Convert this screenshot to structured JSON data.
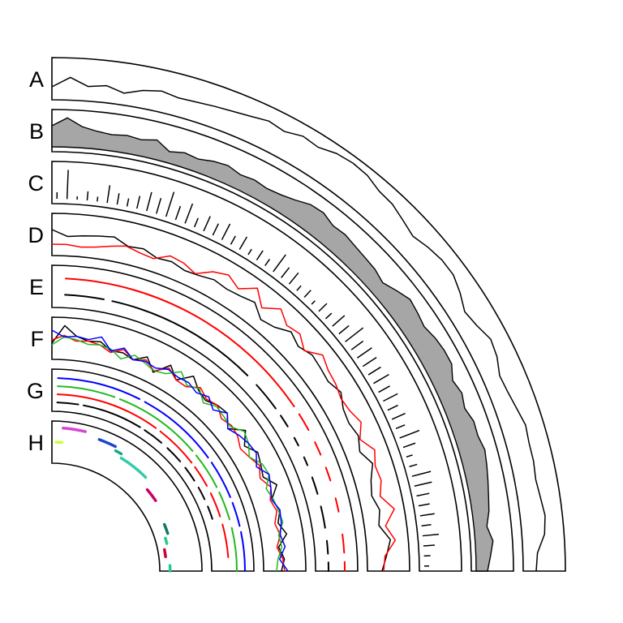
{
  "chart_data": {
    "type": "circular-tracks",
    "colors": {
      "black": "#000000",
      "red": "#ff0000",
      "green": "#22b822",
      "blue": "#0000ff",
      "area_fill": "#a6a6a6"
    },
    "x_range": [
      0,
      1
    ],
    "tracks": [
      {
        "label": "A",
        "kind": "line",
        "ylim": [
          0,
          1
        ],
        "series": [
          {
            "color": "black",
            "y": [
              0.25,
              0.55,
              0.3,
              0.38,
              0.22,
              0.4,
              0.5,
              0.42,
              0.45,
              0.5,
              0.55,
              0.62,
              0.72,
              0.65,
              0.8,
              0.75,
              0.9,
              0.95,
              0.92,
              0.78,
              0.75,
              0.62,
              0.5,
              0.62,
              0.7,
              0.7,
              0.55,
              0.35,
              0.45,
              0.62,
              0.55,
              0.38,
              0.42,
              0.5,
              0.6,
              0.55,
              0.55,
              0.5,
              0.55,
              0.62,
              0.55,
              0.3,
              0.25
            ]
          }
        ]
      },
      {
        "label": "B",
        "kind": "area",
        "ylim": [
          0,
          1
        ],
        "series": [
          {
            "color": "black",
            "fill": "area_fill",
            "y": [
              0.65,
              0.9,
              0.65,
              0.55,
              0.5,
              0.55,
              0.5,
              0.6,
              0.35,
              0.45,
              0.4,
              0.5,
              0.55,
              0.45,
              0.5,
              0.45,
              0.5,
              0.6,
              0.75,
              0.78,
              0.65,
              0.68,
              0.62,
              0.58,
              0.55,
              0.45,
              0.62,
              0.78,
              0.72,
              0.65,
              0.75,
              0.8,
              0.8,
              0.6,
              0.7,
              0.6,
              0.72,
              0.7,
              0.78,
              0.72,
              0.65,
              0.58,
              0.52,
              0.4,
              0.55,
              0.45,
              0.35
            ]
          }
        ]
      },
      {
        "label": "C",
        "kind": "bar",
        "ylim": [
          0,
          1
        ],
        "values": [
          0.2,
          0.9,
          0.1,
          0.28,
          0.15,
          0.55,
          0.35,
          0.25,
          0.4,
          0.6,
          0.5,
          0.8,
          0.45,
          0.65,
          0.3,
          0.5,
          0.4,
          0.55,
          0.3,
          0.45,
          0.2,
          0.35,
          0.25,
          0.65,
          0.4,
          0.45,
          0.2,
          0.3,
          0.15,
          0.35,
          0.25,
          0.5,
          0.4,
          0.7,
          0.45,
          0.55,
          0.5,
          0.45,
          0.55,
          0.4,
          0.5,
          0.35,
          0.45,
          0.3,
          0.65,
          0.4,
          0.2,
          0.25,
          0.6,
          0.55,
          0.4,
          0.35,
          0.45,
          0.3,
          0.5,
          0.35,
          0.2,
          0.15
        ]
      },
      {
        "label": "D",
        "kind": "line",
        "ylim": [
          0,
          1
        ],
        "series": [
          {
            "color": "black",
            "y": [
              0.65,
              0.45,
              0.5,
              0.55,
              0.6,
              0.4,
              0.45,
              0.3,
              0.35,
              0.25,
              0.3,
              0.4,
              0.35,
              0.4,
              0.5,
              0.2,
              0.3,
              0.55,
              0.4,
              0.55,
              0.5,
              0.45,
              0.6,
              0.4,
              0.35,
              0.45,
              0.3,
              0.55,
              0.35,
              0.25,
              0.4,
              0.3,
              0.6,
              0.45,
              0.3
            ]
          },
          {
            "color": "red",
            "y": [
              0.2,
              0.2,
              0.15,
              0.2,
              0.3,
              0.4,
              0.3,
              0.25,
              0.5,
              0.45,
              0.3,
              0.6,
              0.75,
              0.55,
              0.9,
              0.5,
              0.85,
              0.6,
              0.7,
              0.45,
              0.8,
              0.65,
              0.6,
              0.5,
              0.55,
              0.7,
              0.45,
              0.75,
              0.6,
              0.65,
              0.5,
              0.85,
              0.5,
              0.75,
              0.4,
              0.35
            ]
          }
        ]
      },
      {
        "label": "E",
        "kind": "segments",
        "rows": [
          {
            "color": "red",
            "segments": [
              [
                0.03,
                0.62
              ],
              [
                0.64,
                0.68
              ],
              [
                0.71,
                0.74
              ],
              [
                0.77,
                0.8
              ],
              [
                0.84,
                0.87
              ],
              [
                0.92,
                0.96
              ],
              [
                0.98,
                1.0
              ]
            ]
          },
          {
            "color": "black",
            "segments": [
              [
                0.03,
                0.12
              ],
              [
                0.14,
                0.5
              ],
              [
                0.53,
                0.6
              ],
              [
                0.62,
                0.65
              ],
              [
                0.68,
                0.7
              ],
              [
                0.73,
                0.75
              ],
              [
                0.78,
                0.82
              ],
              [
                0.85,
                0.9
              ],
              [
                0.93,
                0.96
              ],
              [
                0.98,
                1.0
              ]
            ]
          }
        ]
      },
      {
        "label": "F",
        "kind": "line",
        "ylim": [
          0,
          1
        ],
        "series": [
          {
            "color": "black",
            "y": [
              0.35,
              0.9,
              0.6,
              0.5,
              0.55,
              0.35,
              0.4,
              0.3,
              0.55,
              0.2,
              0.65,
              0.35,
              0.75,
              0.5,
              0.4,
              0.55,
              0.6,
              0.3,
              0.7,
              0.4,
              0.65,
              0.55,
              0.45,
              0.75,
              0.45,
              0.6,
              0.45,
              0.65,
              0.35,
              0.5,
              0.4
            ]
          },
          {
            "color": "red",
            "y": [
              0.45,
              0.6,
              0.45,
              0.5,
              0.45,
              0.3,
              0.5,
              0.3,
              0.45,
              0.25,
              0.55,
              0.35,
              0.35,
              0.6,
              0.45,
              0.55,
              0.35,
              0.45,
              0.4,
              0.25,
              0.35,
              0.5,
              0.35,
              0.55,
              0.4,
              0.5,
              0.35,
              0.45,
              0.3,
              0.45,
              0.5
            ]
          },
          {
            "color": "green",
            "y": [
              0.3,
              0.55,
              0.5,
              0.4,
              0.45,
              0.4,
              0.2,
              0.45,
              0.35,
              0.25,
              0.35,
              0.65,
              0.4,
              0.55,
              0.3,
              0.5,
              0.45,
              0.4,
              0.65,
              0.55,
              0.35,
              0.6,
              0.65,
              0.4,
              0.5,
              0.55,
              0.6,
              0.4,
              0.45,
              0.3,
              0.25
            ]
          },
          {
            "color": "blue",
            "y": [
              0.75,
              0.55,
              0.6,
              0.55,
              0.7,
              0.35,
              0.55,
              0.3,
              0.4,
              0.35,
              0.5,
              0.45,
              0.5,
              0.4,
              0.55,
              0.35,
              0.6,
              0.3,
              0.45,
              0.55,
              0.6,
              0.4,
              0.65,
              0.55,
              0.45,
              0.6,
              0.55,
              0.45,
              0.55,
              0.35,
              0.6
            ]
          }
        ]
      },
      {
        "label": "G",
        "kind": "segments",
        "rows": [
          {
            "color": "blue",
            "segments": [
              [
                0.02,
                0.3
              ],
              [
                0.32,
                0.6
              ],
              [
                0.62,
                0.75
              ],
              [
                0.77,
                0.85
              ],
              [
                0.87,
                1.0
              ]
            ]
          },
          {
            "color": "green",
            "segments": [
              [
                0.02,
                0.22
              ],
              [
                0.24,
                0.55
              ],
              [
                0.57,
                0.7
              ],
              [
                0.72,
                0.82
              ],
              [
                0.85,
                1.0
              ]
            ]
          },
          {
            "color": "red",
            "segments": [
              [
                0.02,
                0.4
              ],
              [
                0.42,
                0.58
              ],
              [
                0.6,
                0.68
              ],
              [
                0.71,
                0.8
              ],
              [
                0.83,
                0.95
              ]
            ]
          },
          {
            "color": "black",
            "segments": [
              [
                0.02,
                0.1
              ],
              [
                0.12,
                0.35
              ],
              [
                0.37,
                0.45
              ],
              [
                0.48,
                0.55
              ],
              [
                0.58,
                0.64
              ],
              [
                0.67,
                0.72
              ],
              [
                0.75,
                0.8
              ]
            ]
          }
        ]
      },
      {
        "label": "H",
        "kind": "segments",
        "rows": [
          {
            "color": "#dd44cc",
            "segments": [
              [
                0.05,
                0.15
              ]
            ]
          },
          {
            "color": "#2244cc",
            "segments": [
              [
                0.22,
                0.3
              ]
            ]
          },
          {
            "color": "#11aa88",
            "segments": [
              [
                0.31,
                0.34
              ]
            ]
          },
          {
            "color": "#33ccaa",
            "segments": [
              [
                0.35,
                0.5
              ]
            ]
          },
          {
            "color": "#c8ff44",
            "segments": [
              [
                0.02,
                0.05
              ]
            ]
          },
          {
            "color": "#cc0066",
            "segments": [
              [
                0.55,
                0.62
              ]
            ]
          },
          {
            "color": "#117766",
            "segments": [
              [
                0.75,
                0.8
              ]
            ]
          },
          {
            "color": "#22cc88",
            "segments": [
              [
                0.82,
                0.85
              ],
              [
                0.97,
                1.0
              ]
            ]
          },
          {
            "color": "#cc0033",
            "segments": [
              [
                0.88,
                0.92
              ]
            ]
          }
        ]
      }
    ]
  }
}
